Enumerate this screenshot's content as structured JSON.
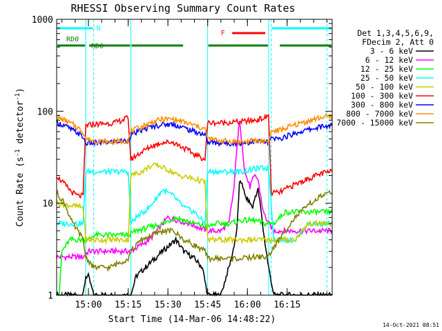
{
  "chart_data": {
    "type": "line",
    "title": "RHESSI Observing Summary Count Rates",
    "xlabel": "Start Time (14-Mar-06 14:48:22)",
    "ylabel_main": "Count Rate (s",
    "ylabel_sup1": "-1",
    "ylabel_mid": " detector",
    "ylabel_sup2": "-1",
    "ylabel_end": ")",
    "y_scale": "log",
    "ylim": [
      1,
      1000
    ],
    "xlim_minutes": [
      0,
      104
    ],
    "x_ticks": [
      {
        "minute": 12,
        "label": "15:00"
      },
      {
        "minute": 27,
        "label": "15:15"
      },
      {
        "minute": 42,
        "label": "15:30"
      },
      {
        "minute": 57,
        "label": "15:45"
      },
      {
        "minute": 72,
        "label": "16:00"
      },
      {
        "minute": 87,
        "label": "16:15"
      }
    ],
    "y_ticks": [
      {
        "value": 1,
        "label": "1"
      },
      {
        "value": 10,
        "label": "10"
      },
      {
        "value": 100,
        "label": "100"
      },
      {
        "value": 1000,
        "label": "1000"
      }
    ],
    "legend_header": [
      "Det 1,3,4,5,6,9,",
      "FDecim 2, Att 0"
    ],
    "legend_position": "right",
    "series": [
      {
        "name": "3 - 6 keV",
        "color": "#000000",
        "values": [
          [
            0,
            1
          ],
          [
            10,
            1
          ],
          [
            11,
            1.6
          ],
          [
            12,
            1.6
          ],
          [
            14,
            1
          ],
          [
            28,
            1
          ],
          [
            30,
            1.6
          ],
          [
            35,
            2.2
          ],
          [
            40,
            3
          ],
          [
            45,
            4
          ],
          [
            48,
            3
          ],
          [
            52,
            2.5
          ],
          [
            55,
            2
          ],
          [
            57,
            1
          ],
          [
            62,
            1
          ],
          [
            64,
            1.6
          ],
          [
            66,
            2.5
          ],
          [
            68,
            5
          ],
          [
            69,
            16
          ],
          [
            70,
            17
          ],
          [
            71,
            12
          ],
          [
            73,
            10
          ],
          [
            74,
            9
          ],
          [
            75,
            12
          ],
          [
            76,
            14
          ],
          [
            77,
            9
          ],
          [
            78,
            5
          ],
          [
            80,
            2
          ],
          [
            82,
            1
          ],
          [
            104,
            1
          ]
        ]
      },
      {
        "name": "6 - 12 keV",
        "color": "#ff00ff",
        "values": [
          [
            0,
            2.6
          ],
          [
            10,
            2.6
          ],
          [
            12,
            3
          ],
          [
            14,
            3
          ],
          [
            28,
            3
          ],
          [
            35,
            4
          ],
          [
            42,
            7
          ],
          [
            50,
            6
          ],
          [
            57,
            5
          ],
          [
            62,
            5
          ],
          [
            65,
            6
          ],
          [
            67,
            15
          ],
          [
            68,
            40
          ],
          [
            69,
            75
          ],
          [
            70,
            45
          ],
          [
            71,
            22
          ],
          [
            72,
            18
          ],
          [
            73,
            15
          ],
          [
            74,
            18
          ],
          [
            75,
            20
          ],
          [
            76,
            18
          ],
          [
            77,
            12
          ],
          [
            78,
            8
          ],
          [
            80,
            6
          ],
          [
            82,
            5
          ],
          [
            90,
            5
          ],
          [
            104,
            5
          ]
        ]
      },
      {
        "name": "12 - 25 keV",
        "color": "#00ff00",
        "values": [
          [
            0,
            1
          ],
          [
            1,
            1
          ],
          [
            2,
            3
          ],
          [
            5,
            4
          ],
          [
            10,
            4
          ],
          [
            12,
            4
          ],
          [
            14,
            4.5
          ],
          [
            27,
            4.5
          ],
          [
            30,
            5
          ],
          [
            40,
            6
          ],
          [
            45,
            7
          ],
          [
            52,
            6
          ],
          [
            57,
            5.5
          ],
          [
            60,
            6
          ],
          [
            65,
            6
          ],
          [
            70,
            6.5
          ],
          [
            75,
            6.5
          ],
          [
            78,
            6
          ],
          [
            82,
            6
          ],
          [
            86,
            8
          ],
          [
            94,
            8
          ],
          [
            104,
            8
          ]
        ]
      },
      {
        "name": "25 - 50 keV",
        "color": "#00ffff",
        "values": [
          [
            0,
            6
          ],
          [
            10,
            6
          ],
          [
            11,
            22
          ],
          [
            12,
            22
          ],
          [
            14,
            22
          ],
          [
            27,
            22
          ],
          [
            28,
            6
          ],
          [
            30,
            7
          ],
          [
            35,
            9
          ],
          [
            40,
            14
          ],
          [
            44,
            12
          ],
          [
            48,
            9
          ],
          [
            52,
            8
          ],
          [
            56,
            6
          ],
          [
            57,
            22
          ],
          [
            62,
            22
          ],
          [
            70,
            22
          ],
          [
            76,
            24
          ],
          [
            80,
            24
          ],
          [
            82,
            4
          ],
          [
            86,
            4
          ],
          [
            90,
            4
          ],
          [
            95,
            6
          ],
          [
            104,
            6
          ]
        ]
      },
      {
        "name": "50 - 100 keV",
        "color": "#cccc00",
        "values": [
          [
            0,
            10
          ],
          [
            10,
            9
          ],
          [
            11,
            4
          ],
          [
            12,
            4
          ],
          [
            14,
            4
          ],
          [
            27,
            4
          ],
          [
            28,
            20
          ],
          [
            32,
            22
          ],
          [
            35,
            25
          ],
          [
            38,
            26
          ],
          [
            42,
            23
          ],
          [
            46,
            20
          ],
          [
            50,
            19
          ],
          [
            56,
            17
          ],
          [
            57,
            4
          ],
          [
            62,
            4
          ],
          [
            70,
            4
          ],
          [
            78,
            4
          ],
          [
            82,
            4
          ],
          [
            86,
            4
          ],
          [
            90,
            4
          ],
          [
            95,
            6
          ],
          [
            104,
            6
          ]
        ]
      },
      {
        "name": "100 - 300 keV",
        "color": "#ff0000",
        "values": [
          [
            0,
            20
          ],
          [
            3,
            16
          ],
          [
            6,
            13
          ],
          [
            8,
            12
          ],
          [
            10,
            12
          ],
          [
            11,
            70
          ],
          [
            14,
            72
          ],
          [
            22,
            75
          ],
          [
            27,
            85
          ],
          [
            28,
            30
          ],
          [
            32,
            36
          ],
          [
            36,
            42
          ],
          [
            40,
            46
          ],
          [
            44,
            46
          ],
          [
            48,
            40
          ],
          [
            52,
            34
          ],
          [
            56,
            30
          ],
          [
            57,
            75
          ],
          [
            62,
            75
          ],
          [
            70,
            77
          ],
          [
            75,
            80
          ],
          [
            79,
            85
          ],
          [
            80,
            92
          ],
          [
            81,
            13
          ],
          [
            84,
            13
          ],
          [
            88,
            15
          ],
          [
            92,
            17
          ],
          [
            96,
            19
          ],
          [
            100,
            21
          ],
          [
            104,
            22
          ]
        ]
      },
      {
        "name": "300 - 800 keV",
        "color": "#0000ff",
        "values": [
          [
            0,
            75
          ],
          [
            3,
            70
          ],
          [
            6,
            62
          ],
          [
            8,
            58
          ],
          [
            10,
            52
          ],
          [
            11,
            45
          ],
          [
            14,
            45
          ],
          [
            20,
            46
          ],
          [
            27,
            48
          ],
          [
            28,
            55
          ],
          [
            32,
            62
          ],
          [
            36,
            68
          ],
          [
            40,
            72
          ],
          [
            44,
            72
          ],
          [
            48,
            66
          ],
          [
            52,
            60
          ],
          [
            56,
            56
          ],
          [
            57,
            46
          ],
          [
            62,
            45
          ],
          [
            70,
            45
          ],
          [
            75,
            47
          ],
          [
            80,
            46
          ],
          [
            81,
            50
          ],
          [
            84,
            50
          ],
          [
            88,
            55
          ],
          [
            92,
            60
          ],
          [
            96,
            64
          ],
          [
            100,
            68
          ],
          [
            104,
            70
          ]
        ]
      },
      {
        "name": "800 - 7000 keV",
        "color": "#ff8c00",
        "values": [
          [
            0,
            85
          ],
          [
            3,
            80
          ],
          [
            6,
            72
          ],
          [
            8,
            66
          ],
          [
            10,
            60
          ],
          [
            11,
            50
          ],
          [
            14,
            48
          ],
          [
            20,
            46
          ],
          [
            27,
            48
          ],
          [
            28,
            60
          ],
          [
            32,
            68
          ],
          [
            36,
            76
          ],
          [
            40,
            82
          ],
          [
            44,
            82
          ],
          [
            48,
            76
          ],
          [
            52,
            70
          ],
          [
            56,
            64
          ],
          [
            57,
            50
          ],
          [
            62,
            48
          ],
          [
            70,
            46
          ],
          [
            75,
            48
          ],
          [
            80,
            47
          ],
          [
            81,
            60
          ],
          [
            84,
            62
          ],
          [
            88,
            68
          ],
          [
            92,
            74
          ],
          [
            96,
            80
          ],
          [
            100,
            86
          ],
          [
            104,
            88
          ]
        ]
      },
      {
        "name": "7000 - 15000 keV",
        "color": "#808000",
        "values": [
          [
            0,
            13
          ],
          [
            3,
            10
          ],
          [
            6,
            6
          ],
          [
            8,
            5
          ],
          [
            10,
            4
          ],
          [
            11,
            2.6
          ],
          [
            14,
            2
          ],
          [
            20,
            2
          ],
          [
            27,
            2.5
          ],
          [
            28,
            3
          ],
          [
            32,
            4
          ],
          [
            36,
            4.5
          ],
          [
            40,
            5
          ],
          [
            44,
            5
          ],
          [
            48,
            4
          ],
          [
            52,
            3.5
          ],
          [
            56,
            3
          ],
          [
            57,
            2.5
          ],
          [
            62,
            2.5
          ],
          [
            70,
            2.5
          ],
          [
            75,
            2.6
          ],
          [
            80,
            2.6
          ],
          [
            81,
            3
          ],
          [
            84,
            4
          ],
          [
            88,
            6
          ],
          [
            92,
            8
          ],
          [
            96,
            10
          ],
          [
            100,
            12
          ],
          [
            104,
            13
          ]
        ]
      }
    ],
    "annotations": {
      "N": {
        "label": "N",
        "color": "#00ffff",
        "segments": [
          [
            0,
            14
          ],
          [
            81,
            104
          ]
        ]
      },
      "F": {
        "label": "F",
        "color": "#ff0000",
        "segments": [
          [
            66,
            79
          ]
        ]
      },
      "RD0": {
        "label": "RD0",
        "color": "#008000",
        "segments": [
          [
            0,
            11
          ]
        ]
      },
      "RD6": {
        "label": "RD6",
        "color": "#008000",
        "segments": [
          [
            12,
            28
          ],
          [
            28,
            48
          ],
          [
            57,
            80
          ],
          [
            84,
            104
          ]
        ]
      }
    },
    "vertical_lines": [
      {
        "minute": 11,
        "color": "#00ffff",
        "style": "solid"
      },
      {
        "minute": 14,
        "color": "#00ffff",
        "style": "dashed"
      },
      {
        "minute": 28,
        "color": "#00ffff",
        "style": "solid"
      },
      {
        "minute": 57,
        "color": "#00ffff",
        "style": "solid"
      },
      {
        "minute": 80,
        "color": "#00ffff",
        "style": "solid"
      },
      {
        "minute": 81,
        "color": "#00ffff",
        "style": "dashed"
      },
      {
        "minute": 102,
        "color": "#00ffff",
        "style": "dashed"
      }
    ]
  },
  "footer_timestamp": "14-Oct-2021 08:51"
}
